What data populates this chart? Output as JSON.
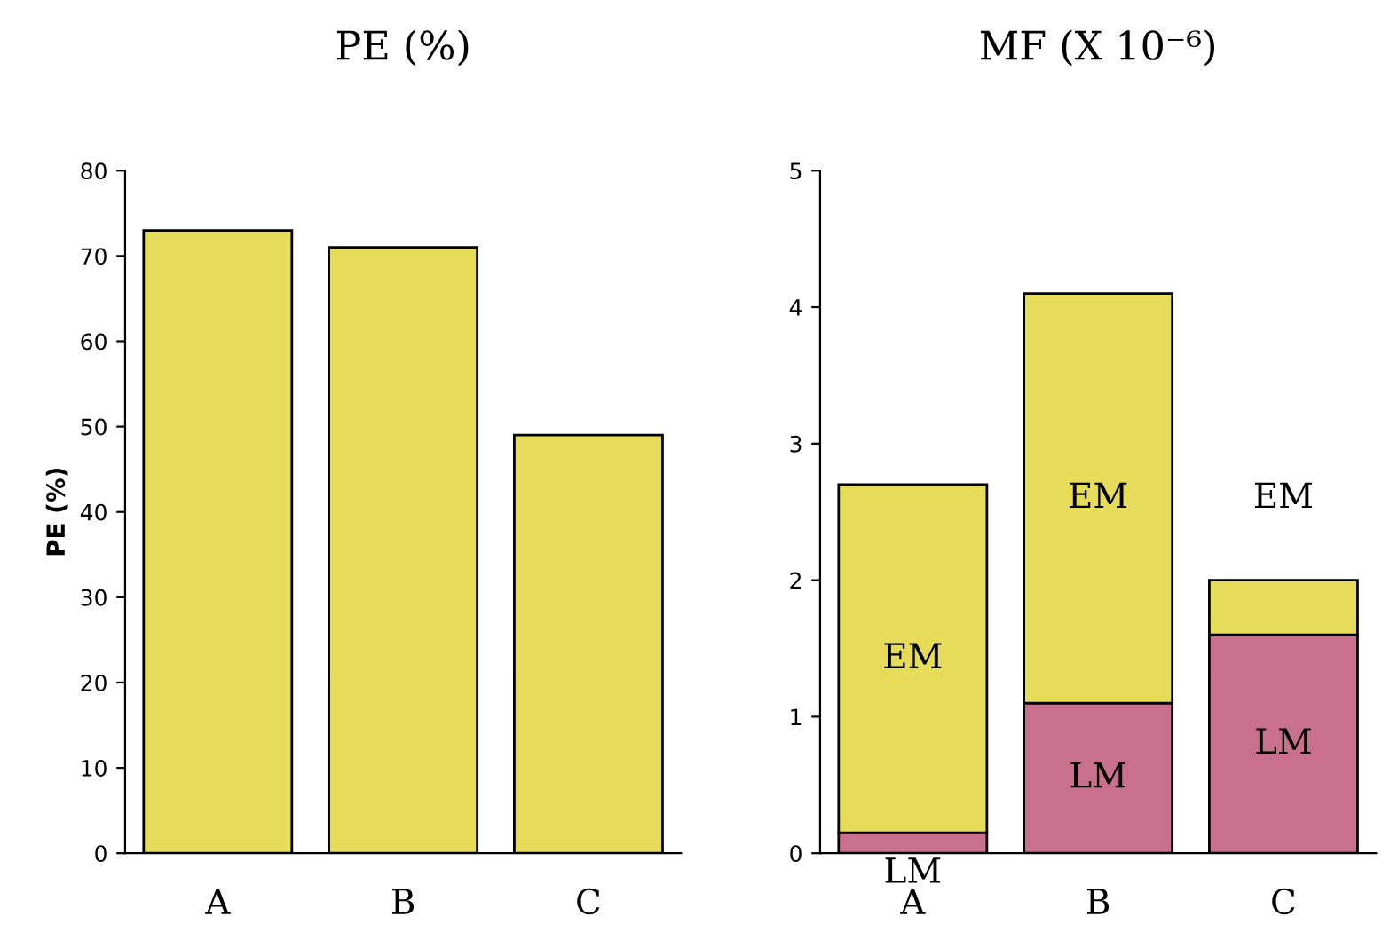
{
  "chart_data": [
    {
      "type": "bar",
      "title": "PE (%)",
      "ylabel": "PE (%)",
      "categories": [
        "A",
        "B",
        "C"
      ],
      "series": [
        {
          "color": "#e6dc5a",
          "values": [
            73,
            71,
            49
          ]
        }
      ],
      "ylim": [
        0,
        80
      ],
      "yticks": [
        0,
        10,
        20,
        30,
        40,
        50,
        60,
        70,
        80
      ],
      "grid": false,
      "legend": false
    },
    {
      "type": "bar",
      "title": "MF (X 10⁻⁶)",
      "categories": [
        "A",
        "B",
        "C"
      ],
      "stacked": true,
      "series": [
        {
          "name": "LM",
          "color": "#c9708f",
          "values": [
            0.15,
            1.1,
            1.6
          ]
        },
        {
          "name": "EM",
          "color": "#e6dc5a",
          "values": [
            2.55,
            3.0,
            0.4
          ]
        }
      ],
      "ylim": [
        0,
        5
      ],
      "yticks": [
        0,
        1,
        2,
        3,
        4,
        5
      ],
      "grid": false,
      "legend": false
    }
  ]
}
